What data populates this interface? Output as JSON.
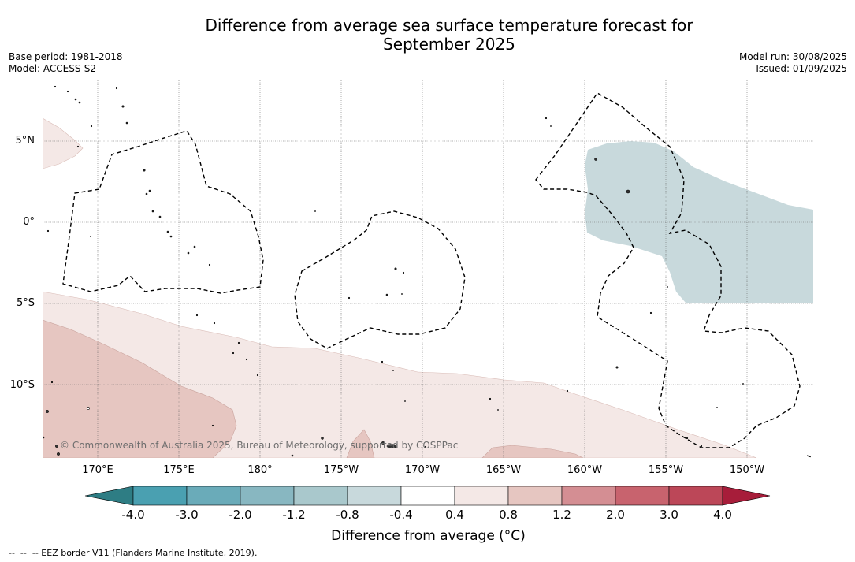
{
  "title": {
    "line1": "Difference from average sea surface temperature forecast for",
    "line2": "September 2025"
  },
  "meta": {
    "base_period": "Base period: 1981-2018",
    "model": "Model: ACCESS-S2",
    "model_run": "Model run: 30/08/2025",
    "issued": "Issued: 01/09/2025"
  },
  "map": {
    "lat_labels": [
      "5°N",
      "0°",
      "5°S",
      "10°S"
    ],
    "lon_labels": [
      "170°E",
      "175°E",
      "180°",
      "175°W",
      "170°W",
      "165°W",
      "160°W",
      "155°W",
      "150°W"
    ],
    "copyright": "© Commonwealth of Australia 2025, Bureau of Meteorology, supported by COSPPac",
    "colors": {
      "anomaly_0_4_to_0_8": "#f4e8e6",
      "anomaly_0_8_to_1_2": "#e6c6c1",
      "anomaly_minus_0_8_to_minus_0_4": "#c8d9dc",
      "eez_border": "#000000",
      "land": "#333333"
    }
  },
  "colorbar": {
    "ticks": [
      "-4.0",
      "-3.0",
      "-2.0",
      "-1.2",
      "-0.8",
      "-0.4",
      "0.4",
      "0.8",
      "1.2",
      "2.0",
      "3.0",
      "4.0"
    ],
    "colors": [
      "#2e7d84",
      "#4aa0b1",
      "#6aabb9",
      "#88b7c1",
      "#a9c8cc",
      "#c8d9dc",
      "#ffffff",
      "#f4e8e6",
      "#e6c6c1",
      "#d48e93",
      "#c8636e",
      "#bc4758",
      "#a71d3a"
    ],
    "label": "Difference from average (°C)"
  },
  "footer": "--  --  -- EEZ border V11 (Flanders Marine Institute, 2019)."
}
